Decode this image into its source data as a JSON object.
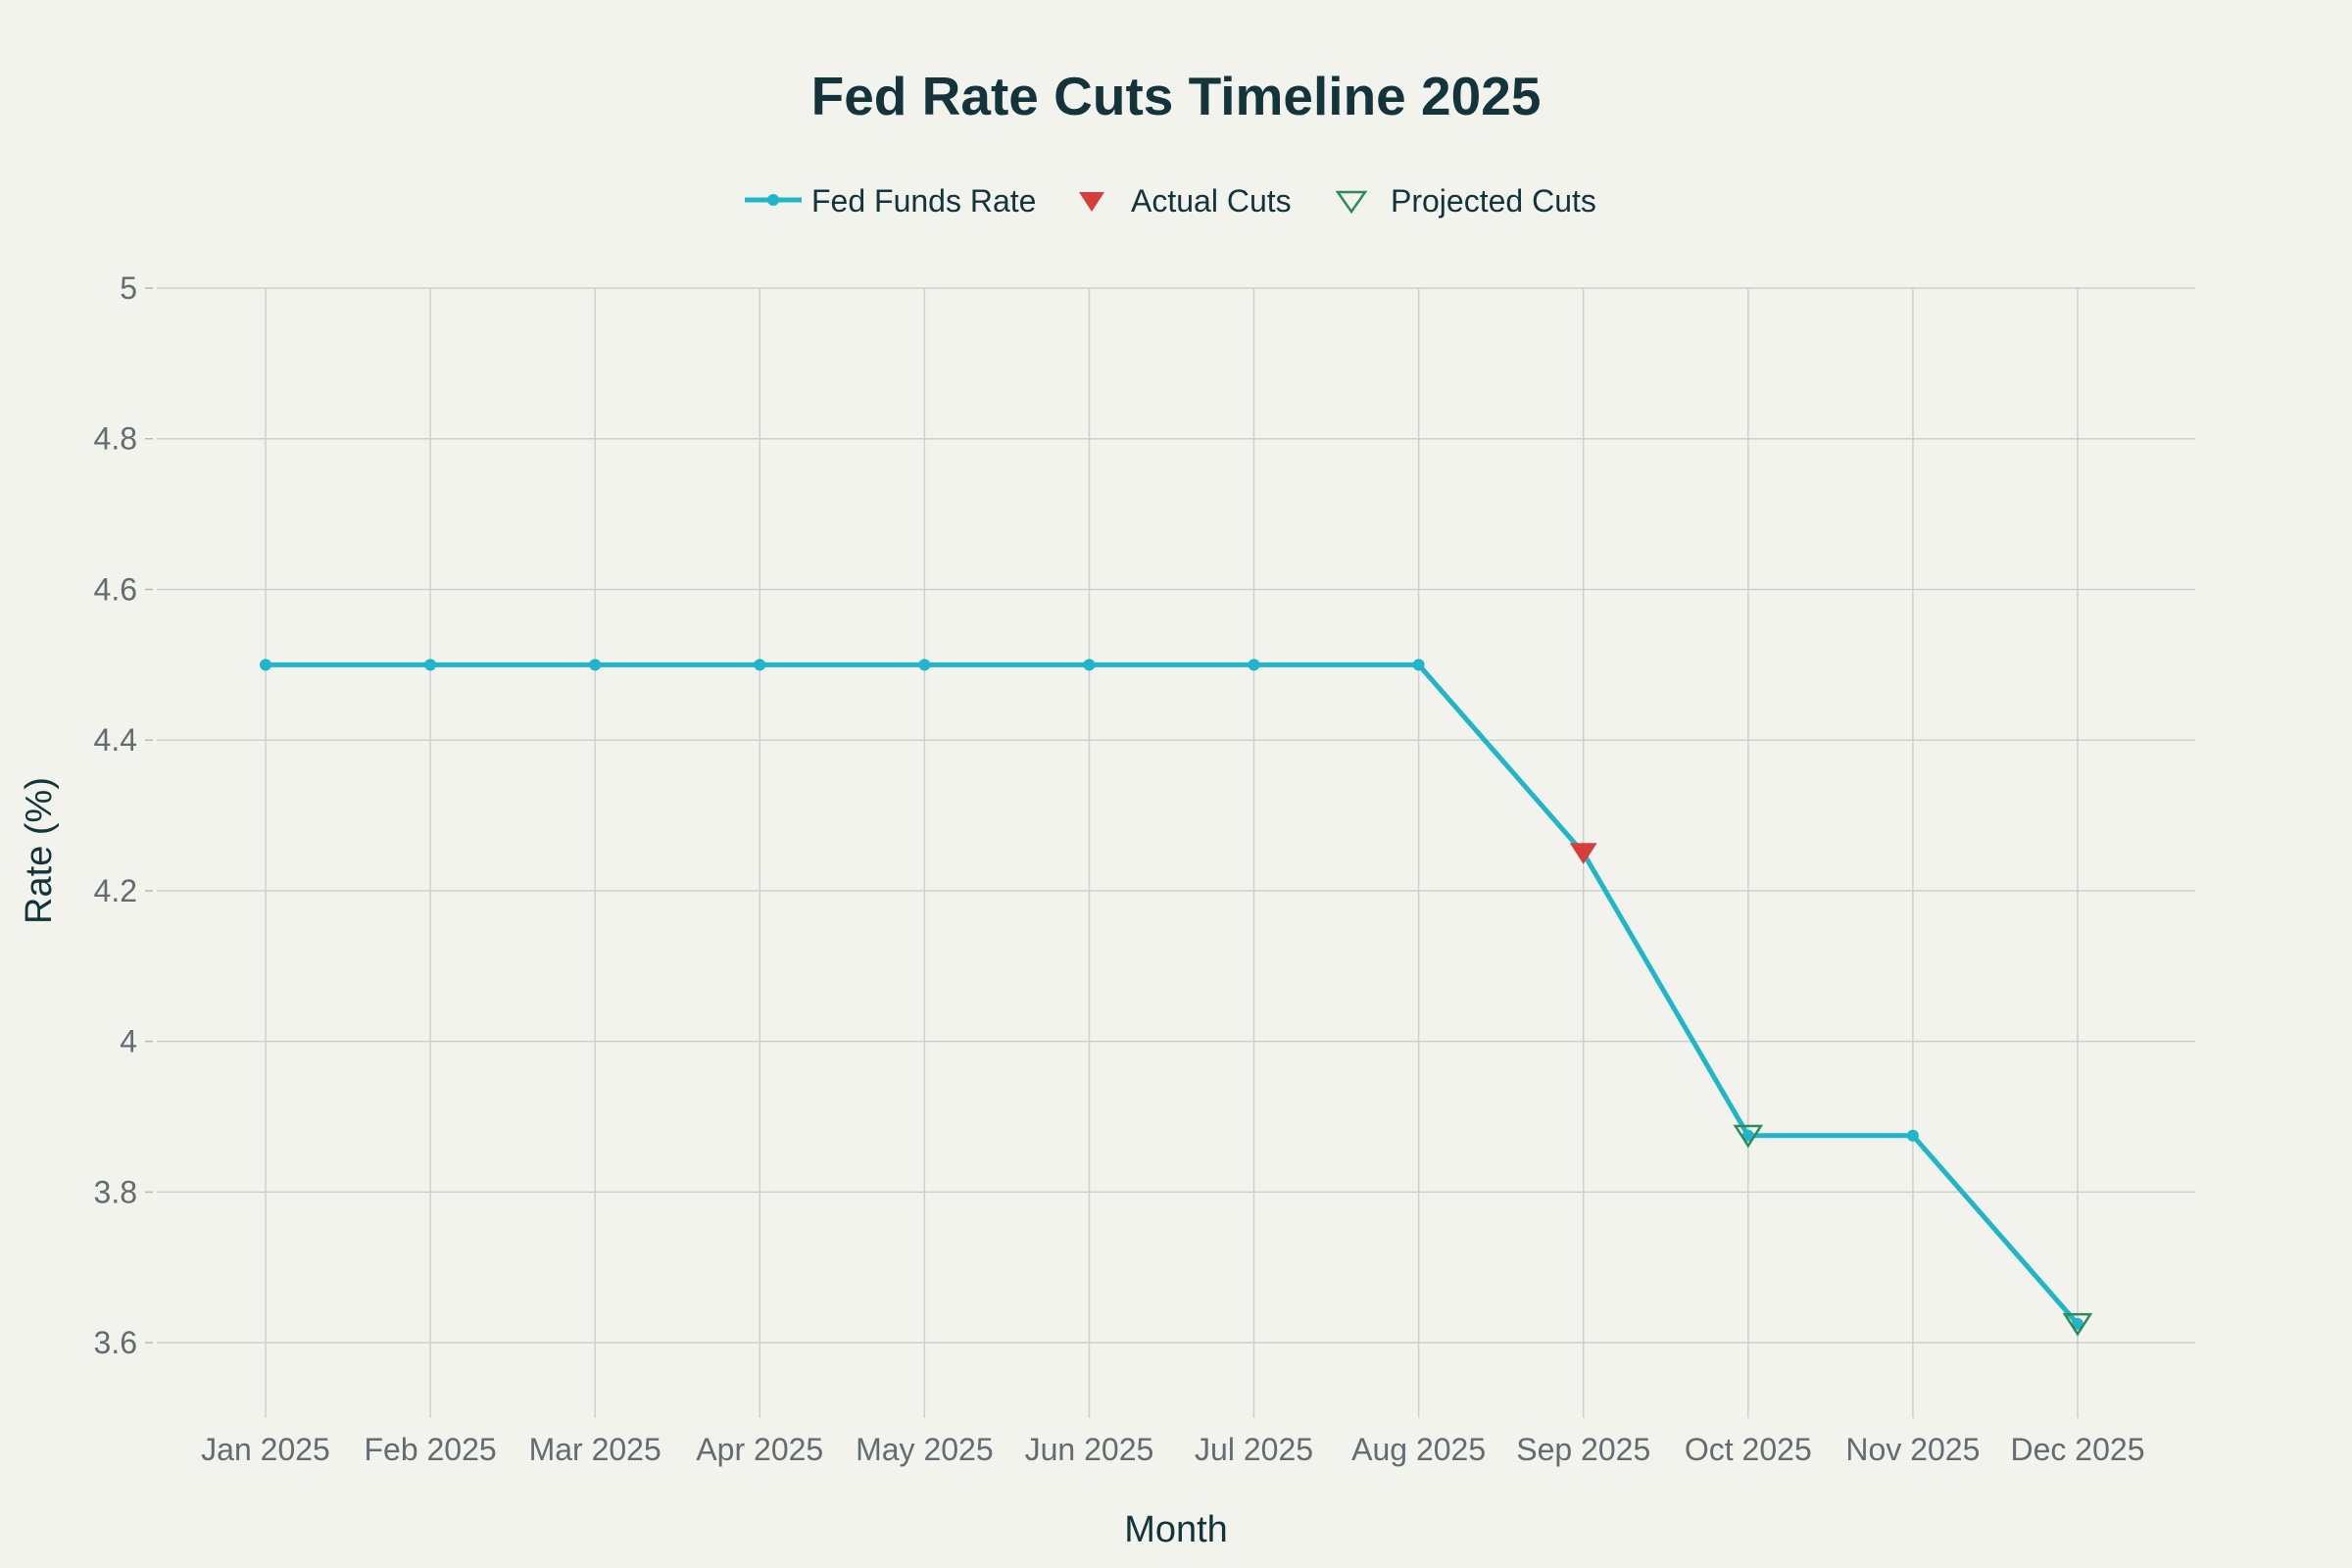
{
  "chart_data": {
    "type": "line",
    "title": "Fed Rate Cuts Timeline 2025",
    "xlabel": "Month",
    "ylabel": "Rate (%)",
    "categories": [
      "Jan 2025",
      "Feb 2025",
      "Mar 2025",
      "Apr 2025",
      "May 2025",
      "Jun 2025",
      "Jul 2025",
      "Aug 2025",
      "Sep 2025",
      "Oct 2025",
      "Nov 2025",
      "Dec 2025"
    ],
    "ylim": [
      3.5,
      5.0
    ],
    "yticks": [
      3.6,
      3.8,
      4,
      4.2,
      4.4,
      4.6,
      4.8,
      5
    ],
    "ytick_labels": [
      "3.6",
      "3.8",
      "4",
      "4.2",
      "4.4",
      "4.6",
      "4.8",
      "5"
    ],
    "grid": true,
    "legend_position": "top-center",
    "series": [
      {
        "name": "Fed Funds Rate",
        "kind": "line-markers",
        "color": "#21b5c9",
        "values": [
          4.5,
          4.5,
          4.5,
          4.5,
          4.5,
          4.5,
          4.5,
          4.5,
          4.25,
          3.875,
          3.875,
          3.625
        ]
      },
      {
        "name": "Actual Cuts",
        "kind": "markers",
        "marker": "triangle-down-filled",
        "color": "#d63e3e",
        "points": [
          {
            "x": "Sep 2025",
            "y": 4.25
          }
        ]
      },
      {
        "name": "Projected Cuts",
        "kind": "markers",
        "marker": "triangle-down-open",
        "color": "#2e8b57",
        "points": [
          {
            "x": "Oct 2025",
            "y": 3.875
          },
          {
            "x": "Dec 2025",
            "y": 3.625
          }
        ]
      }
    ]
  }
}
